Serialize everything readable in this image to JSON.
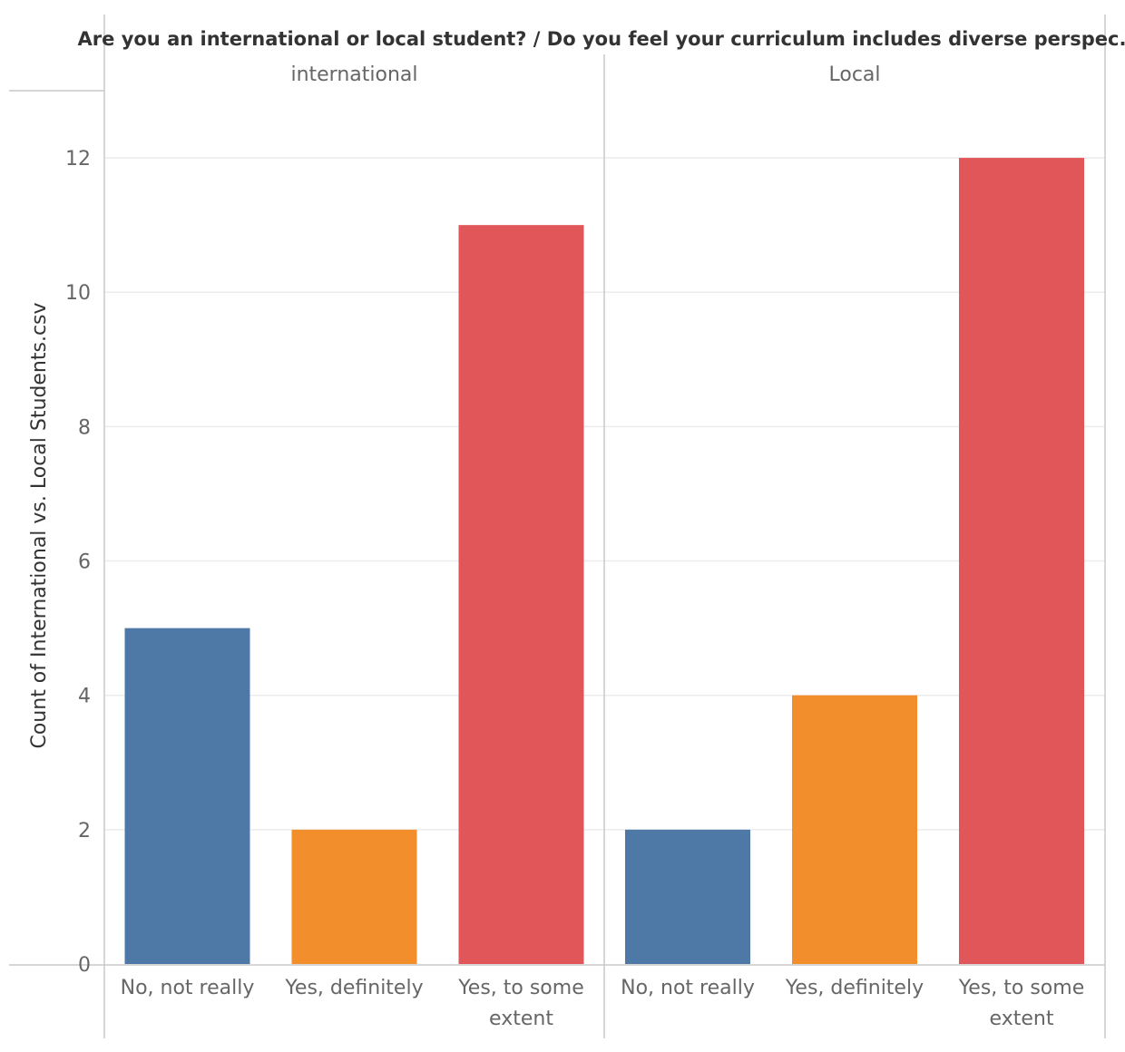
{
  "chart_data": {
    "type": "bar",
    "title": "Are you an international or local student?  /  Do you feel your curriculum includes diverse perspec..",
    "ylabel": "Count of International vs. Local Students.csv",
    "xlabel": "",
    "ylim": [
      0,
      13
    ],
    "yticks": [
      0,
      2,
      4,
      6,
      8,
      10,
      12
    ],
    "grid": true,
    "categories": [
      [
        "No, not really"
      ],
      [
        "Yes, definitely"
      ],
      [
        "Yes, to some",
        "extent"
      ]
    ],
    "category_colors": [
      "#4e79a7",
      "#f28e2b",
      "#e15759"
    ],
    "panels": [
      {
        "label": "international",
        "values": [
          5,
          2,
          11
        ]
      },
      {
        "label": "Local",
        "values": [
          2,
          4,
          12
        ]
      }
    ]
  }
}
